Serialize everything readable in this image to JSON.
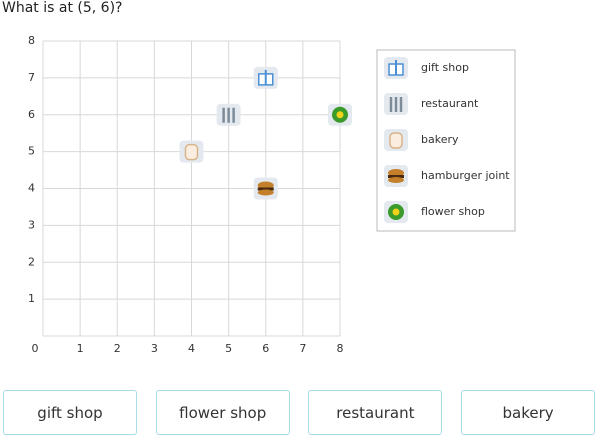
{
  "question": "What is at (5, 6)?",
  "chart_data": {
    "type": "scatter",
    "xlim": [
      0,
      8
    ],
    "ylim": [
      0,
      8
    ],
    "xticks": [
      0,
      1,
      2,
      3,
      4,
      5,
      6,
      7,
      8
    ],
    "yticks": [
      1,
      2,
      3,
      4,
      5,
      6,
      7,
      8
    ],
    "grid": true,
    "legend": "right",
    "series": [
      {
        "name": "gift shop",
        "color": "#4a8fd4",
        "x": [
          6
        ],
        "y": [
          7
        ]
      },
      {
        "name": "restaurant",
        "color": "#7d8b99",
        "x": [
          5
        ],
        "y": [
          6
        ]
      },
      {
        "name": "bakery",
        "color": "#d9b48a",
        "x": [
          4
        ],
        "y": [
          5
        ]
      },
      {
        "name": "hamburger joint",
        "color": "#c47f2a",
        "x": [
          6
        ],
        "y": [
          4
        ]
      },
      {
        "name": "flower shop",
        "color": "#3a9a2a",
        "x": [
          8
        ],
        "y": [
          6
        ]
      }
    ]
  },
  "choices": [
    "gift shop",
    "flower shop",
    "restaurant",
    "bakery"
  ]
}
